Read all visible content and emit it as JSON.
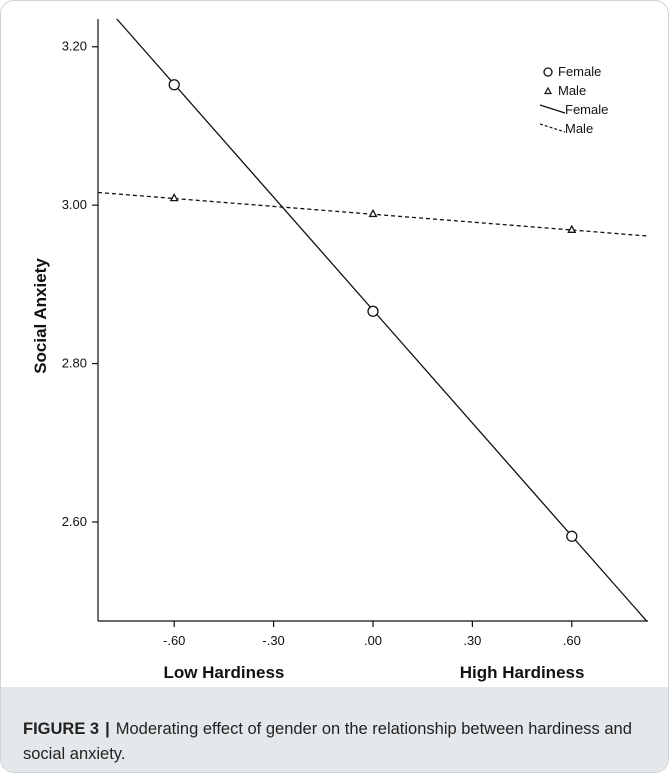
{
  "chart_data": {
    "type": "line",
    "title": "",
    "xlabel_low": "Low Hardiness",
    "xlabel_high": "High Hardiness",
    "ylabel": "Social Anxiety",
    "xlim": [
      -0.83,
      0.83
    ],
    "ylim": [
      2.475,
      3.235
    ],
    "x_ticks": [
      -0.6,
      -0.3,
      0.0,
      0.3,
      0.6
    ],
    "x_tick_labels": [
      "-.60",
      "-.30",
      ".00",
      ".30",
      ".60"
    ],
    "y_ticks": [
      2.6,
      2.8,
      3.0,
      3.2
    ],
    "y_tick_labels": [
      "2.60",
      "2.80",
      "3.00",
      "3.20"
    ],
    "grid": false,
    "legend_position": "top-right",
    "legend": [
      {
        "label": "Female",
        "kind": "marker",
        "marker": "circle"
      },
      {
        "label": "Male",
        "kind": "marker",
        "marker": "triangle"
      },
      {
        "label": "Female",
        "kind": "line",
        "style": "solid"
      },
      {
        "label": "Male",
        "kind": "line",
        "style": "dashed"
      }
    ],
    "series": [
      {
        "name": "Female",
        "marker": "circle",
        "line_style": "solid",
        "x": [
          -0.6,
          0.0,
          0.6
        ],
        "y": [
          3.152,
          2.866,
          2.582
        ],
        "fit_line": {
          "x": [
            -0.83,
            0.83
          ],
          "y": [
            3.262,
            2.473
          ]
        }
      },
      {
        "name": "Male",
        "marker": "triangle",
        "line_style": "dashed",
        "x": [
          -0.6,
          0.0,
          0.6
        ],
        "y": [
          3.009,
          2.989,
          2.969
        ],
        "fit_line": {
          "x": [
            -0.83,
            0.83
          ],
          "y": [
            3.016,
            2.961
          ]
        }
      }
    ]
  },
  "caption": {
    "label": "FIGURE 3",
    "separator": "|",
    "text": "Moderating effect of gender on the relationship between hardiness and social anxiety."
  },
  "colors": {
    "line": "#111111",
    "caption_band": "#e5e8ea",
    "frame": "#cfd4d8"
  }
}
